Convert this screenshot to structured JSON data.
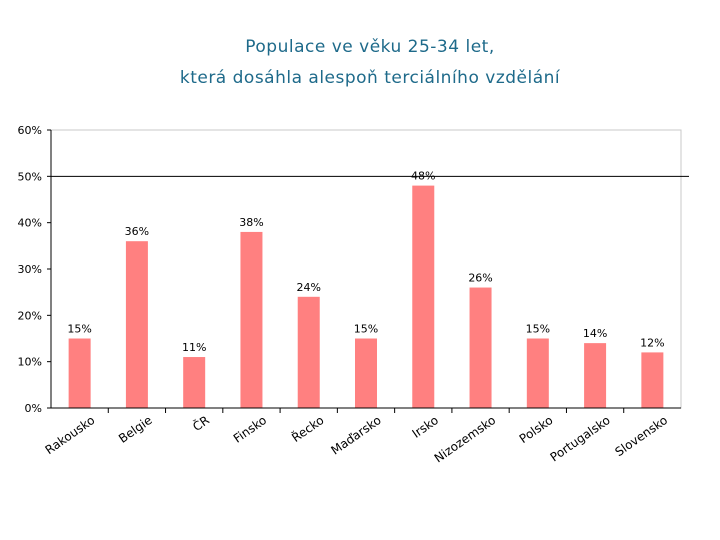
{
  "chart_data": {
    "type": "bar",
    "title_line1": "Populace ve věku 25-34 let,",
    "title_line2": "která dosáhla alespoň terciálního vzdělání",
    "xlabel": "",
    "ylabel": "",
    "ylim": [
      0,
      60
    ],
    "yticks": [
      "0%",
      "10%",
      "20%",
      "30%",
      "40%",
      "50%",
      "60%"
    ],
    "categories": [
      "Rakousko",
      "Belgie",
      "ČR",
      "Finsko",
      "Řecko",
      "Maďarsko",
      "Irsko",
      "Nizozemsko",
      "Polsko",
      "Portugalsko",
      "Slovensko"
    ],
    "values": [
      15,
      36,
      11,
      38,
      24,
      15,
      48,
      26,
      15,
      14,
      12
    ],
    "value_labels": [
      "15%",
      "36%",
      "11%",
      "38%",
      "24%",
      "15%",
      "48%",
      "26%",
      "15%",
      "14%",
      "12%"
    ],
    "reference_line": 50,
    "bar_color": "#ff8080"
  }
}
